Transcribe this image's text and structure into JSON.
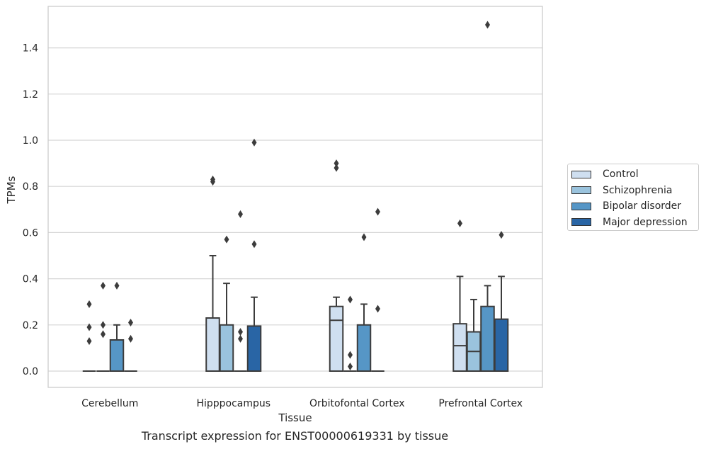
{
  "chart_data": {
    "type": "box",
    "xlabel": "Tissue",
    "ylabel": "TPMs",
    "caption": "Transcript expression for ENST00000619331 by tissue",
    "categories": [
      "Cerebellum",
      "Hipppocampus",
      "Orbitofontal Cortex",
      "Prefrontal Cortex"
    ],
    "ylim": [
      -0.07,
      1.6
    ],
    "yticks": [
      "0.0",
      "0.2",
      "0.4",
      "0.6",
      "0.8",
      "1.0",
      "1.2",
      "1.4"
    ],
    "ytick_values": [
      0,
      0.2,
      0.4,
      0.6,
      0.8,
      1.0,
      1.2,
      1.4
    ],
    "grid": "horizontal",
    "legend_position": "outside right",
    "series": [
      {
        "name": "Control",
        "color": "#cfdff0",
        "boxes": [
          {
            "min": 0,
            "q1": 0,
            "median": 0,
            "q3": 0,
            "max": 0,
            "outliers": [
              0.13,
              0.19,
              0.29
            ]
          },
          {
            "min": 0,
            "q1": 0,
            "median": 0,
            "q3": 0.23,
            "max": 0.5,
            "outliers": [
              0.82,
              0.83
            ]
          },
          {
            "min": 0,
            "q1": 0,
            "median": 0.22,
            "q3": 0.28,
            "max": 0.32,
            "outliers": [
              0.88,
              0.9
            ]
          },
          {
            "min": 0,
            "q1": 0,
            "median": 0.11,
            "q3": 0.205,
            "max": 0.41,
            "outliers": [
              0.64
            ]
          }
        ]
      },
      {
        "name": "Schizophrenia",
        "color": "#9ac3dd",
        "boxes": [
          {
            "min": 0,
            "q1": 0,
            "median": 0,
            "q3": 0,
            "max": 0,
            "outliers": [
              0.16,
              0.2,
              0.37
            ]
          },
          {
            "min": 0,
            "q1": 0,
            "median": 0,
            "q3": 0.2,
            "max": 0.38,
            "outliers": [
              0.57
            ]
          },
          {
            "min": 0,
            "q1": 0,
            "median": 0,
            "q3": 0,
            "max": 0,
            "outliers": [
              0.02,
              0.07,
              0.31
            ]
          },
          {
            "min": 0,
            "q1": 0,
            "median": 0.085,
            "q3": 0.17,
            "max": 0.31,
            "outliers": []
          }
        ]
      },
      {
        "name": "Bipolar disorder",
        "color": "#5696c6",
        "boxes": [
          {
            "min": 0,
            "q1": 0,
            "median": 0,
            "q3": 0.135,
            "max": 0.2,
            "outliers": [
              0.37
            ]
          },
          {
            "min": 0,
            "q1": 0,
            "median": 0,
            "q3": 0,
            "max": 0,
            "outliers": [
              0.14,
              0.17,
              0.68
            ]
          },
          {
            "min": 0,
            "q1": 0,
            "median": 0,
            "q3": 0.2,
            "max": 0.29,
            "outliers": [
              0.58
            ]
          },
          {
            "min": 0,
            "q1": 0,
            "median": 0,
            "q3": 0.28,
            "max": 0.37,
            "outliers": [
              1.5
            ]
          }
        ]
      },
      {
        "name": "Major depression",
        "color": "#2965a5",
        "boxes": [
          {
            "min": 0,
            "q1": 0,
            "median": 0,
            "q3": 0,
            "max": 0,
            "outliers": [
              0.14,
              0.21
            ]
          },
          {
            "min": 0,
            "q1": 0,
            "median": 0,
            "q3": 0.195,
            "max": 0.32,
            "outliers": [
              0.55,
              0.99
            ]
          },
          {
            "min": 0,
            "q1": 0,
            "median": 0,
            "q3": 0,
            "max": 0,
            "outliers": [
              0.27,
              0.69
            ]
          },
          {
            "min": 0,
            "q1": 0,
            "median": 0,
            "q3": 0.225,
            "max": 0.41,
            "outliers": [
              0.59
            ]
          }
        ]
      }
    ]
  }
}
